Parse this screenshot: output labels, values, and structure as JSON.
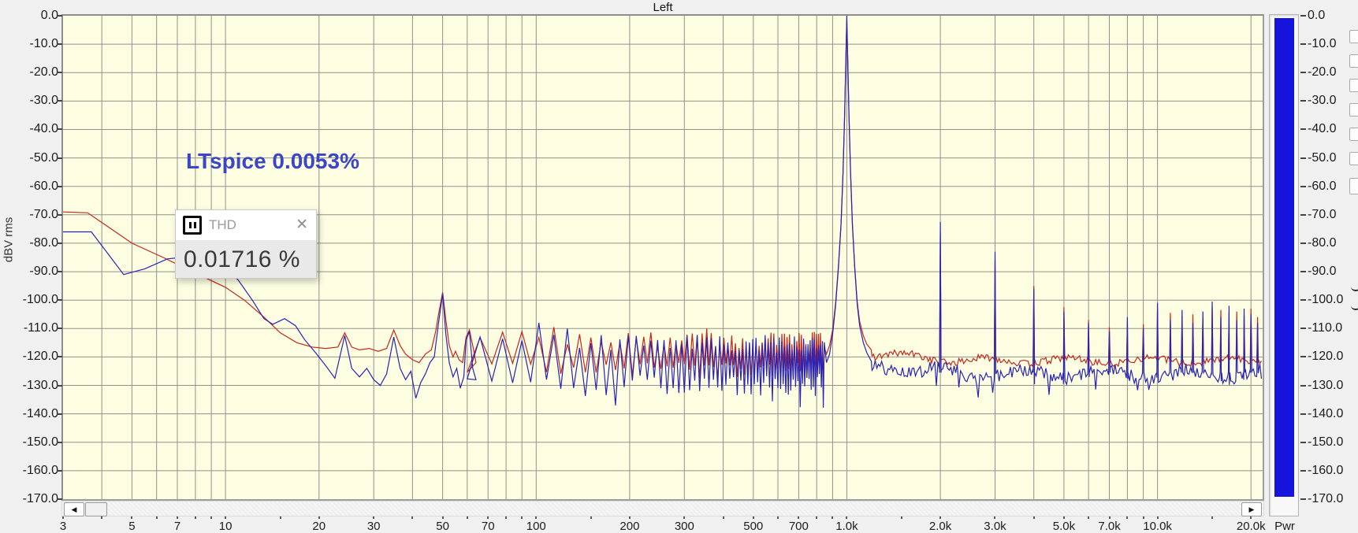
{
  "title": "Left",
  "y_axis_title": "dBV rms",
  "annotation": {
    "text": "LTspice 0.0053%",
    "color": "#3b46c6"
  },
  "thd_box": {
    "icon": "pin-window-icon",
    "title": "THD",
    "close_glyph": "✕",
    "value": "0.01716 %"
  },
  "pwr_meter": {
    "label": "Pwr",
    "fill_color": "#1414dd",
    "top_db": 0.0,
    "bottom_db": -170.0
  },
  "scrollbar": {
    "left_arrow": "◀",
    "right_arrow": "▶"
  },
  "colors": {
    "page_bg": "#f0f0f0",
    "plot_bg": "#fdfde2",
    "grid": "#91938b",
    "red_trace": "#c4281c",
    "blue_trace": "#2823b6"
  },
  "chart_data": {
    "type": "line",
    "title": "Left",
    "x_axis": {
      "scale": "log",
      "unit": "Hz",
      "min": 3,
      "max": 21800,
      "tick_labels": [
        [
          3,
          "3"
        ],
        [
          5,
          "5"
        ],
        [
          7,
          "7"
        ],
        [
          10,
          "10"
        ],
        [
          20,
          "20"
        ],
        [
          30,
          "30"
        ],
        [
          50,
          "50"
        ],
        [
          70,
          "70"
        ],
        [
          100,
          "100"
        ],
        [
          200,
          "200"
        ],
        [
          300,
          "300"
        ],
        [
          500,
          "500"
        ],
        [
          700,
          "700"
        ],
        [
          1000,
          "1.0k"
        ],
        [
          2000,
          "2.0k"
        ],
        [
          3000,
          "3.0k"
        ],
        [
          5000,
          "5.0k"
        ],
        [
          7000,
          "7.0k"
        ],
        [
          10000,
          "10.0k"
        ],
        [
          20000,
          "20.0k"
        ]
      ],
      "minor_tick_mantissas": [
        1,
        1.5,
        2,
        3,
        4,
        5,
        6,
        7,
        8,
        9
      ]
    },
    "y_axis": {
      "label": "dBV rms",
      "min": -170,
      "max": 0,
      "step": 10
    },
    "readouts": {
      "thd": "0.01716 %",
      "annotation": "LTspice 0.0053%"
    },
    "fundamental": {
      "f": 1000,
      "db": 0
    },
    "series": [
      {
        "name": "red-trace",
        "color": "#c4281c",
        "seed": 13,
        "low_anchors": [
          [
            3,
            -69
          ],
          [
            3.6,
            -69.3
          ],
          [
            5,
            -80
          ],
          [
            6.3,
            -85
          ],
          [
            8,
            -90.5
          ],
          [
            10,
            -95.5
          ],
          [
            11.5,
            -100
          ],
          [
            13.3,
            -106
          ],
          [
            15,
            -111.5
          ],
          [
            17,
            -115
          ],
          [
            19,
            -116.5
          ],
          [
            21,
            -117
          ],
          [
            23,
            -116.5
          ],
          [
            24.2,
            -111.5
          ],
          [
            25.5,
            -116.5
          ],
          [
            27,
            -117.5
          ],
          [
            29,
            -117
          ],
          [
            31,
            -118
          ],
          [
            33,
            -117
          ],
          [
            34.8,
            -110.5
          ],
          [
            36.5,
            -116
          ],
          [
            38,
            -119
          ],
          [
            40,
            -121
          ],
          [
            42,
            -122
          ],
          [
            44,
            -119
          ],
          [
            46,
            -117.5
          ],
          [
            47.5,
            -111
          ],
          [
            48.5,
            -105
          ],
          [
            50,
            -97.3
          ],
          [
            51.2,
            -107
          ],
          [
            52.5,
            -116
          ],
          [
            54,
            -120
          ],
          [
            55,
            -118
          ],
          [
            56.5,
            -121
          ],
          [
            58,
            -122
          ],
          [
            59.5,
            -113
          ],
          [
            61,
            -110.5
          ],
          [
            62.5,
            -116
          ],
          [
            64,
            -122
          ]
        ],
        "comb": {
          "f_start": 66,
          "f_end": 846,
          "spacing_hz": 12,
          "top_db": [
            -111,
            -117
          ],
          "valley_db": [
            -122,
            -128
          ],
          "deep_every": 0,
          "deep_extra_db": 0,
          "overrides": {
            "114": -109.5,
            "354": -110
          }
        },
        "peak_anchors": [
          [
            860,
            -119
          ],
          [
            880,
            -116
          ],
          [
            900,
            -110.5
          ],
          [
            920,
            -101
          ],
          [
            940,
            -88
          ],
          [
            958,
            -73
          ],
          [
            972,
            -55
          ],
          [
            984,
            -34
          ],
          [
            993,
            -15
          ],
          [
            1000,
            -2.5
          ],
          [
            1007,
            -15
          ],
          [
            1016,
            -34
          ],
          [
            1028,
            -55
          ],
          [
            1042,
            -73
          ],
          [
            1060,
            -88
          ],
          [
            1080,
            -100.5
          ],
          [
            1100,
            -107.5
          ],
          [
            1130,
            -112.5
          ],
          [
            1160,
            -115.5
          ],
          [
            1199,
            -117.5
          ]
        ],
        "floor": {
          "start_db": -119,
          "end_db": -121.3,
          "jitter_db": 1.3,
          "wave_db": 1.1,
          "dip_chance": 0,
          "dip_db": 0
        },
        "harmonics": [
          [
            2000,
            -76
          ],
          [
            3000,
            -86
          ],
          [
            4000,
            -95
          ],
          [
            5000,
            -102.5
          ],
          [
            6000,
            -107
          ],
          [
            7000,
            -109.5
          ],
          [
            8000,
            -107.5
          ],
          [
            9000,
            -108.5
          ],
          [
            10000,
            -103
          ],
          [
            11000,
            -104.5
          ],
          [
            12000,
            -105.5
          ],
          [
            13000,
            -105
          ],
          [
            14000,
            -106
          ],
          [
            15000,
            -102.5
          ],
          [
            16000,
            -103.5
          ],
          [
            17000,
            -104.5
          ],
          [
            18000,
            -104
          ],
          [
            19000,
            -105.5
          ],
          [
            20000,
            -103
          ],
          [
            21000,
            -106
          ]
        ]
      },
      {
        "name": "blue-trace",
        "color": "#2823b6",
        "seed": 29,
        "low_anchors": [
          [
            3,
            -76
          ],
          [
            3.7,
            -76
          ],
          [
            4.7,
            -91
          ],
          [
            5.5,
            -89
          ],
          [
            6.5,
            -85.5
          ],
          [
            8,
            -84.5
          ],
          [
            9.5,
            -86
          ],
          [
            11,
            -93
          ],
          [
            12.2,
            -100
          ],
          [
            13.3,
            -106.5
          ],
          [
            14.2,
            -108.5
          ],
          [
            15.5,
            -106.5
          ],
          [
            16.8,
            -109
          ],
          [
            18,
            -114
          ],
          [
            19.5,
            -118.5
          ],
          [
            21,
            -123
          ],
          [
            22.5,
            -127.5
          ],
          [
            24.2,
            -112.5
          ],
          [
            25.5,
            -124
          ],
          [
            27,
            -127
          ],
          [
            28.5,
            -124
          ],
          [
            30,
            -128
          ],
          [
            31.5,
            -130
          ],
          [
            33,
            -126
          ],
          [
            34.8,
            -113
          ],
          [
            36.5,
            -124
          ],
          [
            38,
            -128
          ],
          [
            39.5,
            -125
          ],
          [
            41,
            -134.5
          ],
          [
            42.5,
            -129
          ],
          [
            44,
            -126
          ],
          [
            45.5,
            -122
          ],
          [
            47,
            -120
          ],
          [
            48.5,
            -108
          ],
          [
            50,
            -97.8
          ],
          [
            51.2,
            -112
          ],
          [
            52.5,
            -122
          ],
          [
            54,
            -127
          ],
          [
            55.5,
            -124
          ],
          [
            57,
            -131
          ],
          [
            58.5,
            -127
          ],
          [
            59.5,
            -114
          ],
          [
            61,
            -111
          ],
          [
            62.5,
            -124
          ],
          [
            64,
            -128
          ]
        ],
        "comb": {
          "f_start": 66,
          "f_end": 846,
          "spacing_hz": 12,
          "top_db": [
            -112,
            -118.5
          ],
          "valley_db": [
            -126,
            -134
          ],
          "deep_every": 11,
          "deep_extra_db": -5,
          "overrides": {
            "102": -108,
            "126": -110,
            "66": -113
          }
        },
        "peak_anchors": [
          [
            860,
            -122
          ],
          [
            880,
            -119
          ],
          [
            900,
            -112
          ],
          [
            920,
            -102
          ],
          [
            940,
            -88.5
          ],
          [
            958,
            -73.5
          ],
          [
            972,
            -55.5
          ],
          [
            984,
            -34.5
          ],
          [
            993,
            -15.5
          ],
          [
            1000,
            0
          ],
          [
            1007,
            -15.5
          ],
          [
            1016,
            -34.5
          ],
          [
            1028,
            -55.5
          ],
          [
            1042,
            -73.5
          ],
          [
            1060,
            -88.5
          ],
          [
            1080,
            -101.5
          ],
          [
            1100,
            -109
          ],
          [
            1130,
            -115
          ],
          [
            1160,
            -118.5
          ],
          [
            1199,
            -121.5
          ]
        ],
        "floor": {
          "start_db": -123.5,
          "end_db": -126,
          "jitter_db": 2.3,
          "wave_db": 1.6,
          "dip_chance": 0.06,
          "dip_db": 4.5
        },
        "harmonics": [
          [
            2000,
            -72.5
          ],
          [
            3000,
            -83
          ],
          [
            4000,
            -96
          ],
          [
            5000,
            -104
          ],
          [
            6000,
            -108
          ],
          [
            7000,
            -111
          ],
          [
            8000,
            -106
          ],
          [
            9000,
            -110
          ],
          [
            10000,
            -101
          ],
          [
            11000,
            -107
          ],
          [
            12000,
            -103.5
          ],
          [
            13000,
            -108
          ],
          [
            14000,
            -104
          ],
          [
            15000,
            -100.5
          ],
          [
            16000,
            -106
          ],
          [
            17000,
            -102
          ],
          [
            18000,
            -107
          ],
          [
            19000,
            -103
          ],
          [
            20000,
            -105
          ],
          [
            21000,
            -108
          ]
        ]
      }
    ]
  }
}
